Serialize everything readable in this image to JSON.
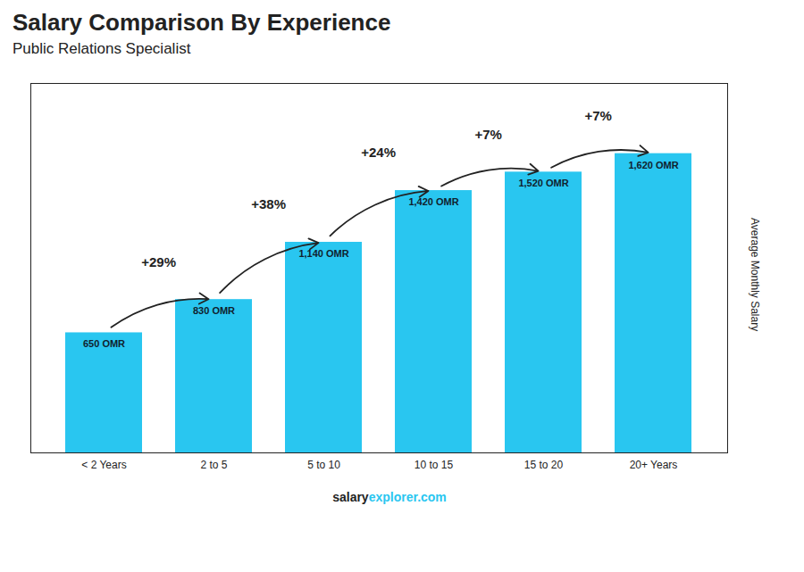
{
  "chart_data": {
    "type": "bar",
    "title": "Salary Comparison By Experience",
    "subtitle": "Public Relations Specialist",
    "ylabel": "Average Monthly Salary",
    "categories": [
      "< 2 Years",
      "2 to 5",
      "5 to 10",
      "10 to 15",
      "15 to 20",
      "20+ Years"
    ],
    "values": [
      650,
      830,
      1140,
      1420,
      1520,
      1620
    ],
    "value_labels": [
      "650 OMR",
      "830 OMR",
      "1,140 OMR",
      "1,420 OMR",
      "1,520 OMR",
      "1,620 OMR"
    ],
    "data_labels": true,
    "annotations": [
      null,
      "+29%",
      "+38%",
      "+24%",
      "+7%",
      "+7%"
    ],
    "footer": [
      "salary",
      "explorer.com"
    ],
    "color": "#29C6F0",
    "ylim": [
      0,
      2000
    ],
    "yticks": [],
    "tick_labels": "x",
    "grid": false
  }
}
